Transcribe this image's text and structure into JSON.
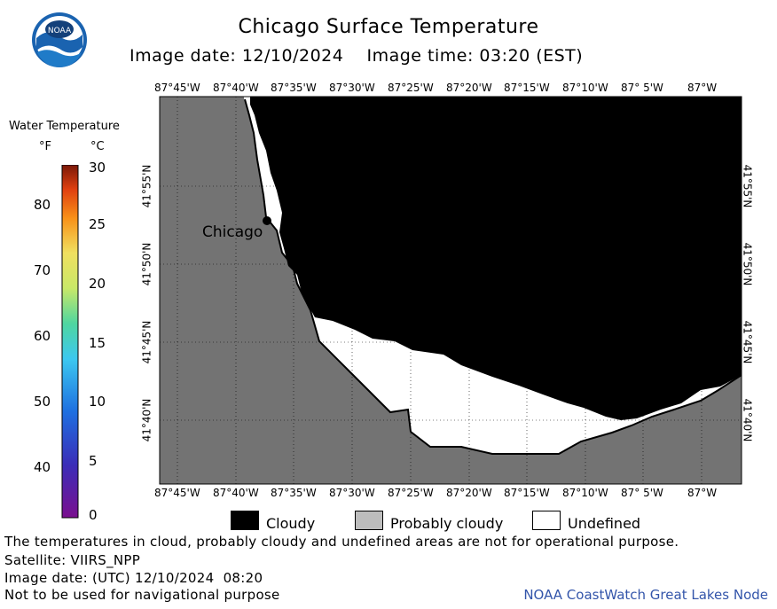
{
  "header": {
    "title": "Chicago Surface Temperature",
    "subtitle": "Image date: 12/10/2024    Image time: 03:20 (EST)"
  },
  "logo": {
    "text": "NOAA",
    "icon": "noaa-logo-icon"
  },
  "map": {
    "top_lon_labels": [
      "87°45'W",
      "87°40'W",
      "87°35'W",
      "87°30'W",
      "87°25'W",
      "87°20'W",
      "87°15'W",
      "87°10'W",
      "87° 5'W",
      "87°W"
    ],
    "bottom_lon_labels": [
      "87°45'W",
      "87°40'W",
      "87°35'W",
      "87°30'W",
      "87°25'W",
      "87°20'W",
      "87°15'W",
      "87°10'W",
      "87° 5'W",
      "87°W"
    ],
    "left_lat_labels": [
      "41°55'N",
      "41°50'N",
      "41°45'N",
      "41°40'N"
    ],
    "right_lat_labels": [
      "41°55'N",
      "41°50'N",
      "41°45'N",
      "41°40'N"
    ],
    "city": "Chicago",
    "colors": {
      "land": "#737373",
      "cloudy": "#000000",
      "undefined": "#ffffff",
      "grid": "#000000"
    }
  },
  "legend": {
    "title": "Water Temperature",
    "unit_f": "°F",
    "unit_c": "°C",
    "fahrenheit_labels": [
      "80",
      "70",
      "60",
      "50",
      "40"
    ],
    "celsius_labels": [
      "30",
      "25",
      "20",
      "15",
      "10",
      "5",
      "0"
    ]
  },
  "key": {
    "cloudy": "Cloudy",
    "probably_cloudy": "Probably cloudy",
    "undefined": "Undefined",
    "colors": {
      "cloudy": "#000000",
      "probably_cloudy": "#bdbdbd",
      "undefined": "#ffffff"
    }
  },
  "footer": {
    "line1": "The temperatures in cloud, probably cloudy and undefined areas are not for operational purpose.",
    "line2": "Satellite: VIIRS_NPP",
    "line3": "Image date: (UTC) 12/10/2024  08:20",
    "line4": "Not to be used for navigational purpose",
    "credit": "NOAA CoastWatch Great Lakes Node"
  }
}
